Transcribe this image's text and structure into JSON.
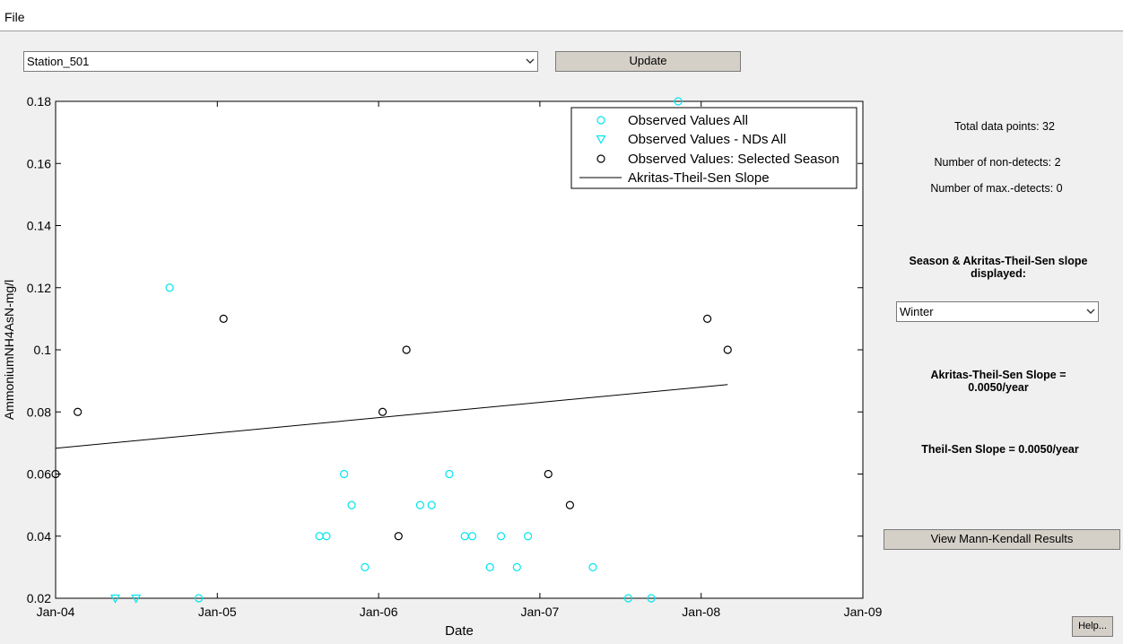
{
  "menu": {
    "file_label": "File"
  },
  "station_select": {
    "value": "Station_501"
  },
  "update_button": {
    "label": "Update"
  },
  "info": {
    "total": "Total data points: 32",
    "nondetects": "Number of non-detects: 2",
    "maxdetects": "Number of max.-detects: 0",
    "season_heading_line1": "Season & Akritas-Theil-Sen slope",
    "season_heading_line2": "displayed:",
    "season_select": "Winter",
    "ats_slope_line1": "Akritas-Theil-Sen Slope =",
    "ats_slope_line2": "0.0050/year",
    "ts_slope": "Theil-Sen Slope = 0.0050/year"
  },
  "mk_button": {
    "label": "View Mann-Kendall Results"
  },
  "help_button": {
    "label": "Help..."
  },
  "chart_data": {
    "type": "scatter",
    "xlabel": "Date",
    "ylabel": "AmmoniumNH4AsN-mg/l",
    "xlim": [
      "2004-01-01",
      "2009-01-01"
    ],
    "ylim": [
      0.02,
      0.18
    ],
    "x_ticks": [
      "Jan-04",
      "Jan-05",
      "Jan-06",
      "Jan-07",
      "Jan-08",
      "Jan-09"
    ],
    "x_tick_dates": [
      "2004-01-01",
      "2005-01-01",
      "2006-01-01",
      "2007-01-01",
      "2008-01-01",
      "2009-01-01"
    ],
    "y_ticks": [
      "0.02",
      "0.04",
      "0.06",
      "0.08",
      "0.1",
      "0.12",
      "0.14",
      "0.16",
      "0.18"
    ],
    "y_tick_values": [
      0.02,
      0.04,
      0.06,
      0.08,
      0.1,
      0.12,
      0.14,
      0.16,
      0.18
    ],
    "legend_position": "top-right",
    "colors": {
      "all": "#00e5ee",
      "season": "#000000",
      "line": "#000000"
    },
    "series": [
      {
        "name": "Observed Values All",
        "marker": "circle",
        "points": [
          [
            "2004-09-15",
            0.12
          ],
          [
            "2005-08-20",
            0.04
          ],
          [
            "2005-09-05",
            0.04
          ],
          [
            "2005-10-15",
            0.06
          ],
          [
            "2005-11-01",
            0.05
          ],
          [
            "2005-12-01",
            0.03
          ],
          [
            "2006-04-05",
            0.05
          ],
          [
            "2006-05-01",
            0.05
          ],
          [
            "2006-06-10",
            0.06
          ],
          [
            "2006-07-15",
            0.04
          ],
          [
            "2006-08-01",
            0.04
          ],
          [
            "2006-09-10",
            0.03
          ],
          [
            "2006-10-05",
            0.04
          ],
          [
            "2006-11-10",
            0.03
          ],
          [
            "2006-12-05",
            0.04
          ],
          [
            "2007-05-01",
            0.03
          ],
          [
            "2007-07-20",
            0.02
          ],
          [
            "2007-09-10",
            0.02
          ],
          [
            "2007-11-10",
            0.18
          ],
          [
            "2004-11-20",
            0.02
          ]
        ]
      },
      {
        "name": "Observed Values - NDs All",
        "marker": "triangle-down",
        "points": [
          [
            "2004-05-15",
            0.02
          ],
          [
            "2004-07-01",
            0.02
          ]
        ]
      },
      {
        "name": "Observed Values: Selected Season",
        "marker": "circle",
        "points": [
          [
            "2004-01-01",
            0.06
          ],
          [
            "2004-02-20",
            0.08
          ],
          [
            "2005-01-15",
            0.11
          ],
          [
            "2006-01-10",
            0.08
          ],
          [
            "2006-02-15",
            0.04
          ],
          [
            "2006-03-05",
            0.1
          ],
          [
            "2007-01-20",
            0.06
          ],
          [
            "2007-03-10",
            0.05
          ],
          [
            "2008-01-15",
            0.11
          ],
          [
            "2008-03-01",
            0.1
          ]
        ]
      },
      {
        "name": "Akritas-Theil-Sen Slope",
        "marker": "line",
        "points": [
          [
            "2004-01-01",
            0.0683
          ],
          [
            "2008-03-01",
            0.0888
          ]
        ]
      }
    ]
  }
}
